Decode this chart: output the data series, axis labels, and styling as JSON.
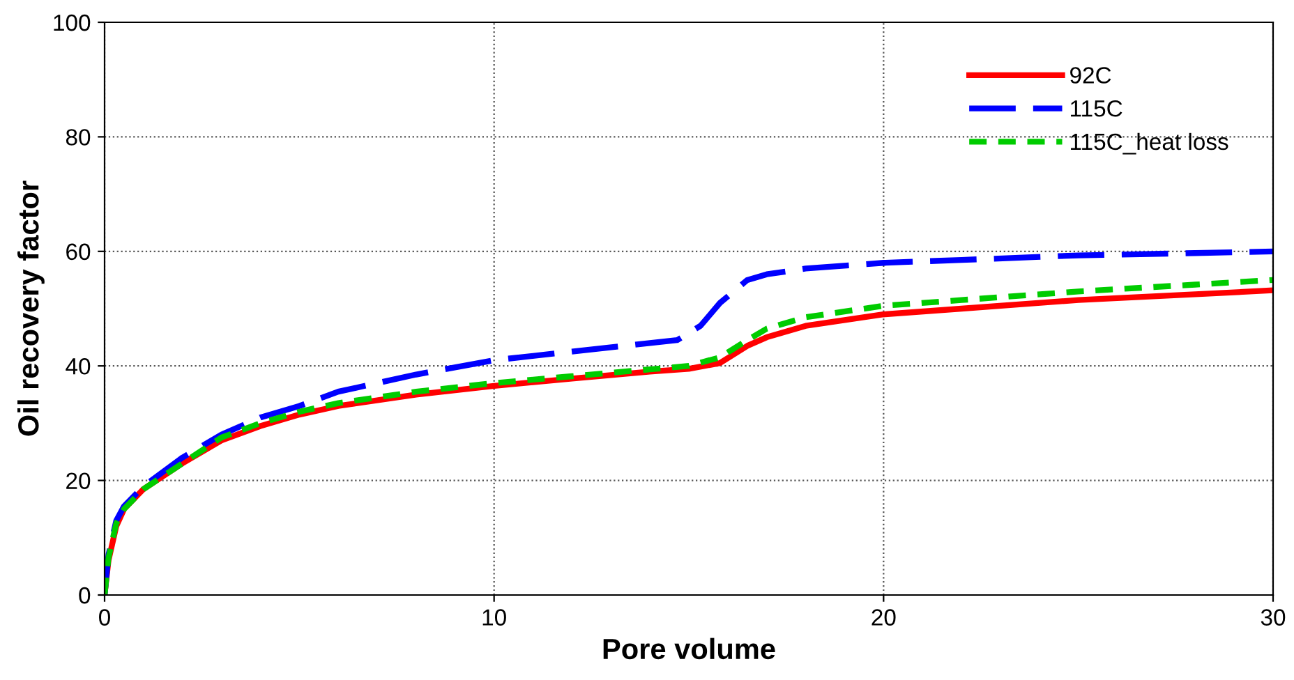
{
  "chart_data": {
    "type": "line",
    "xlabel": "Pore volume",
    "ylabel": "Oil recovery factor",
    "xlim": [
      0,
      30
    ],
    "ylim": [
      0,
      100
    ],
    "xticks": [
      0,
      10,
      20,
      30
    ],
    "yticks": [
      0,
      20,
      40,
      60,
      80,
      100
    ],
    "grid": true,
    "legend": "top right",
    "series": [
      {
        "name": "92C",
        "color": "#ff0000",
        "line_style": "solid",
        "x": [
          0,
          0.1,
          0.3,
          0.5,
          1,
          2,
          3,
          4,
          5,
          6,
          8,
          10,
          12,
          14,
          15,
          15.8,
          16.5,
          17,
          18,
          20,
          22,
          25,
          28,
          30
        ],
        "values": [
          0,
          6,
          12,
          15,
          18.5,
          23,
          27,
          29.5,
          31.5,
          33,
          35,
          36.5,
          37.8,
          39,
          39.5,
          40.5,
          43.5,
          45,
          47,
          49,
          50,
          51.5,
          52.5,
          53.2
        ]
      },
      {
        "name": "115C",
        "color": "#0000ff",
        "line_style": "dashed",
        "x": [
          0,
          0.1,
          0.3,
          0.5,
          1,
          2,
          3,
          4,
          5,
          6,
          8,
          10,
          12,
          14,
          14.7,
          15.3,
          15.8,
          16.5,
          17,
          18,
          20,
          22,
          25,
          28,
          30
        ],
        "values": [
          0,
          7,
          13,
          15.5,
          19,
          24,
          28,
          31,
          33,
          35.5,
          38.5,
          41,
          42.5,
          44,
          44.5,
          47,
          51,
          55,
          56,
          57,
          58,
          58.5,
          59.3,
          59.7,
          60
        ]
      },
      {
        "name": "115C_heat loss",
        "color": "#00cc00",
        "line_style": "dotted",
        "x": [
          0,
          0.1,
          0.3,
          0.5,
          1,
          2,
          3,
          4,
          5,
          6,
          8,
          10,
          12,
          14,
          15,
          15.8,
          16.5,
          17,
          18,
          20,
          22,
          25,
          28,
          30
        ],
        "values": [
          0,
          6.5,
          12.5,
          15,
          18.5,
          23,
          27.5,
          30,
          32,
          33.5,
          35.5,
          37,
          38.2,
          39.4,
          40,
          41.5,
          44.5,
          46.5,
          48.5,
          50.5,
          51.5,
          53,
          54.2,
          55
        ]
      }
    ]
  }
}
